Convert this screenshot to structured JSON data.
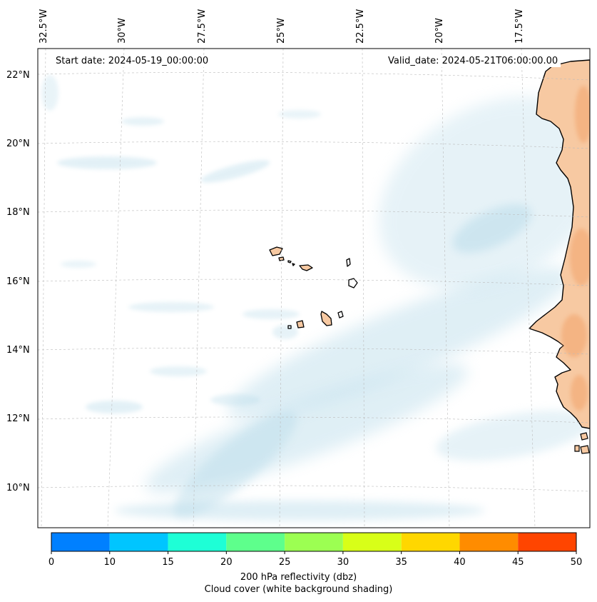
{
  "map": {
    "start_label": "Start date: 2024-05-19_00:00:00",
    "valid_label": "Valid_date: 2024-05-21T06:00:00.00",
    "longitude_labels": [
      "32.5°W",
      "30°W",
      "27.5°W",
      "25°W",
      "22.5°W",
      "20°W",
      "17.5°W"
    ],
    "latitude_labels": [
      "22°N",
      "20°N",
      "18°N",
      "16°N",
      "14°N",
      "12°N",
      "10°N"
    ],
    "land_color": "#f7c9a2",
    "cloud_color": "#b9dcea",
    "coast_color": "#000000"
  },
  "colorbar": {
    "ticks": [
      "0",
      "10",
      "15",
      "20",
      "25",
      "30",
      "35",
      "40",
      "45",
      "50"
    ],
    "colors": [
      "#0080ff",
      "#00c5ff",
      "#1effd6",
      "#5eff8c",
      "#9cff52",
      "#d8ff18",
      "#ffd700",
      "#ff8c00",
      "#ff4500"
    ],
    "title": "200 hPa reflectivity (dbz)",
    "subtitle": "Cloud cover (white background shading)"
  }
}
